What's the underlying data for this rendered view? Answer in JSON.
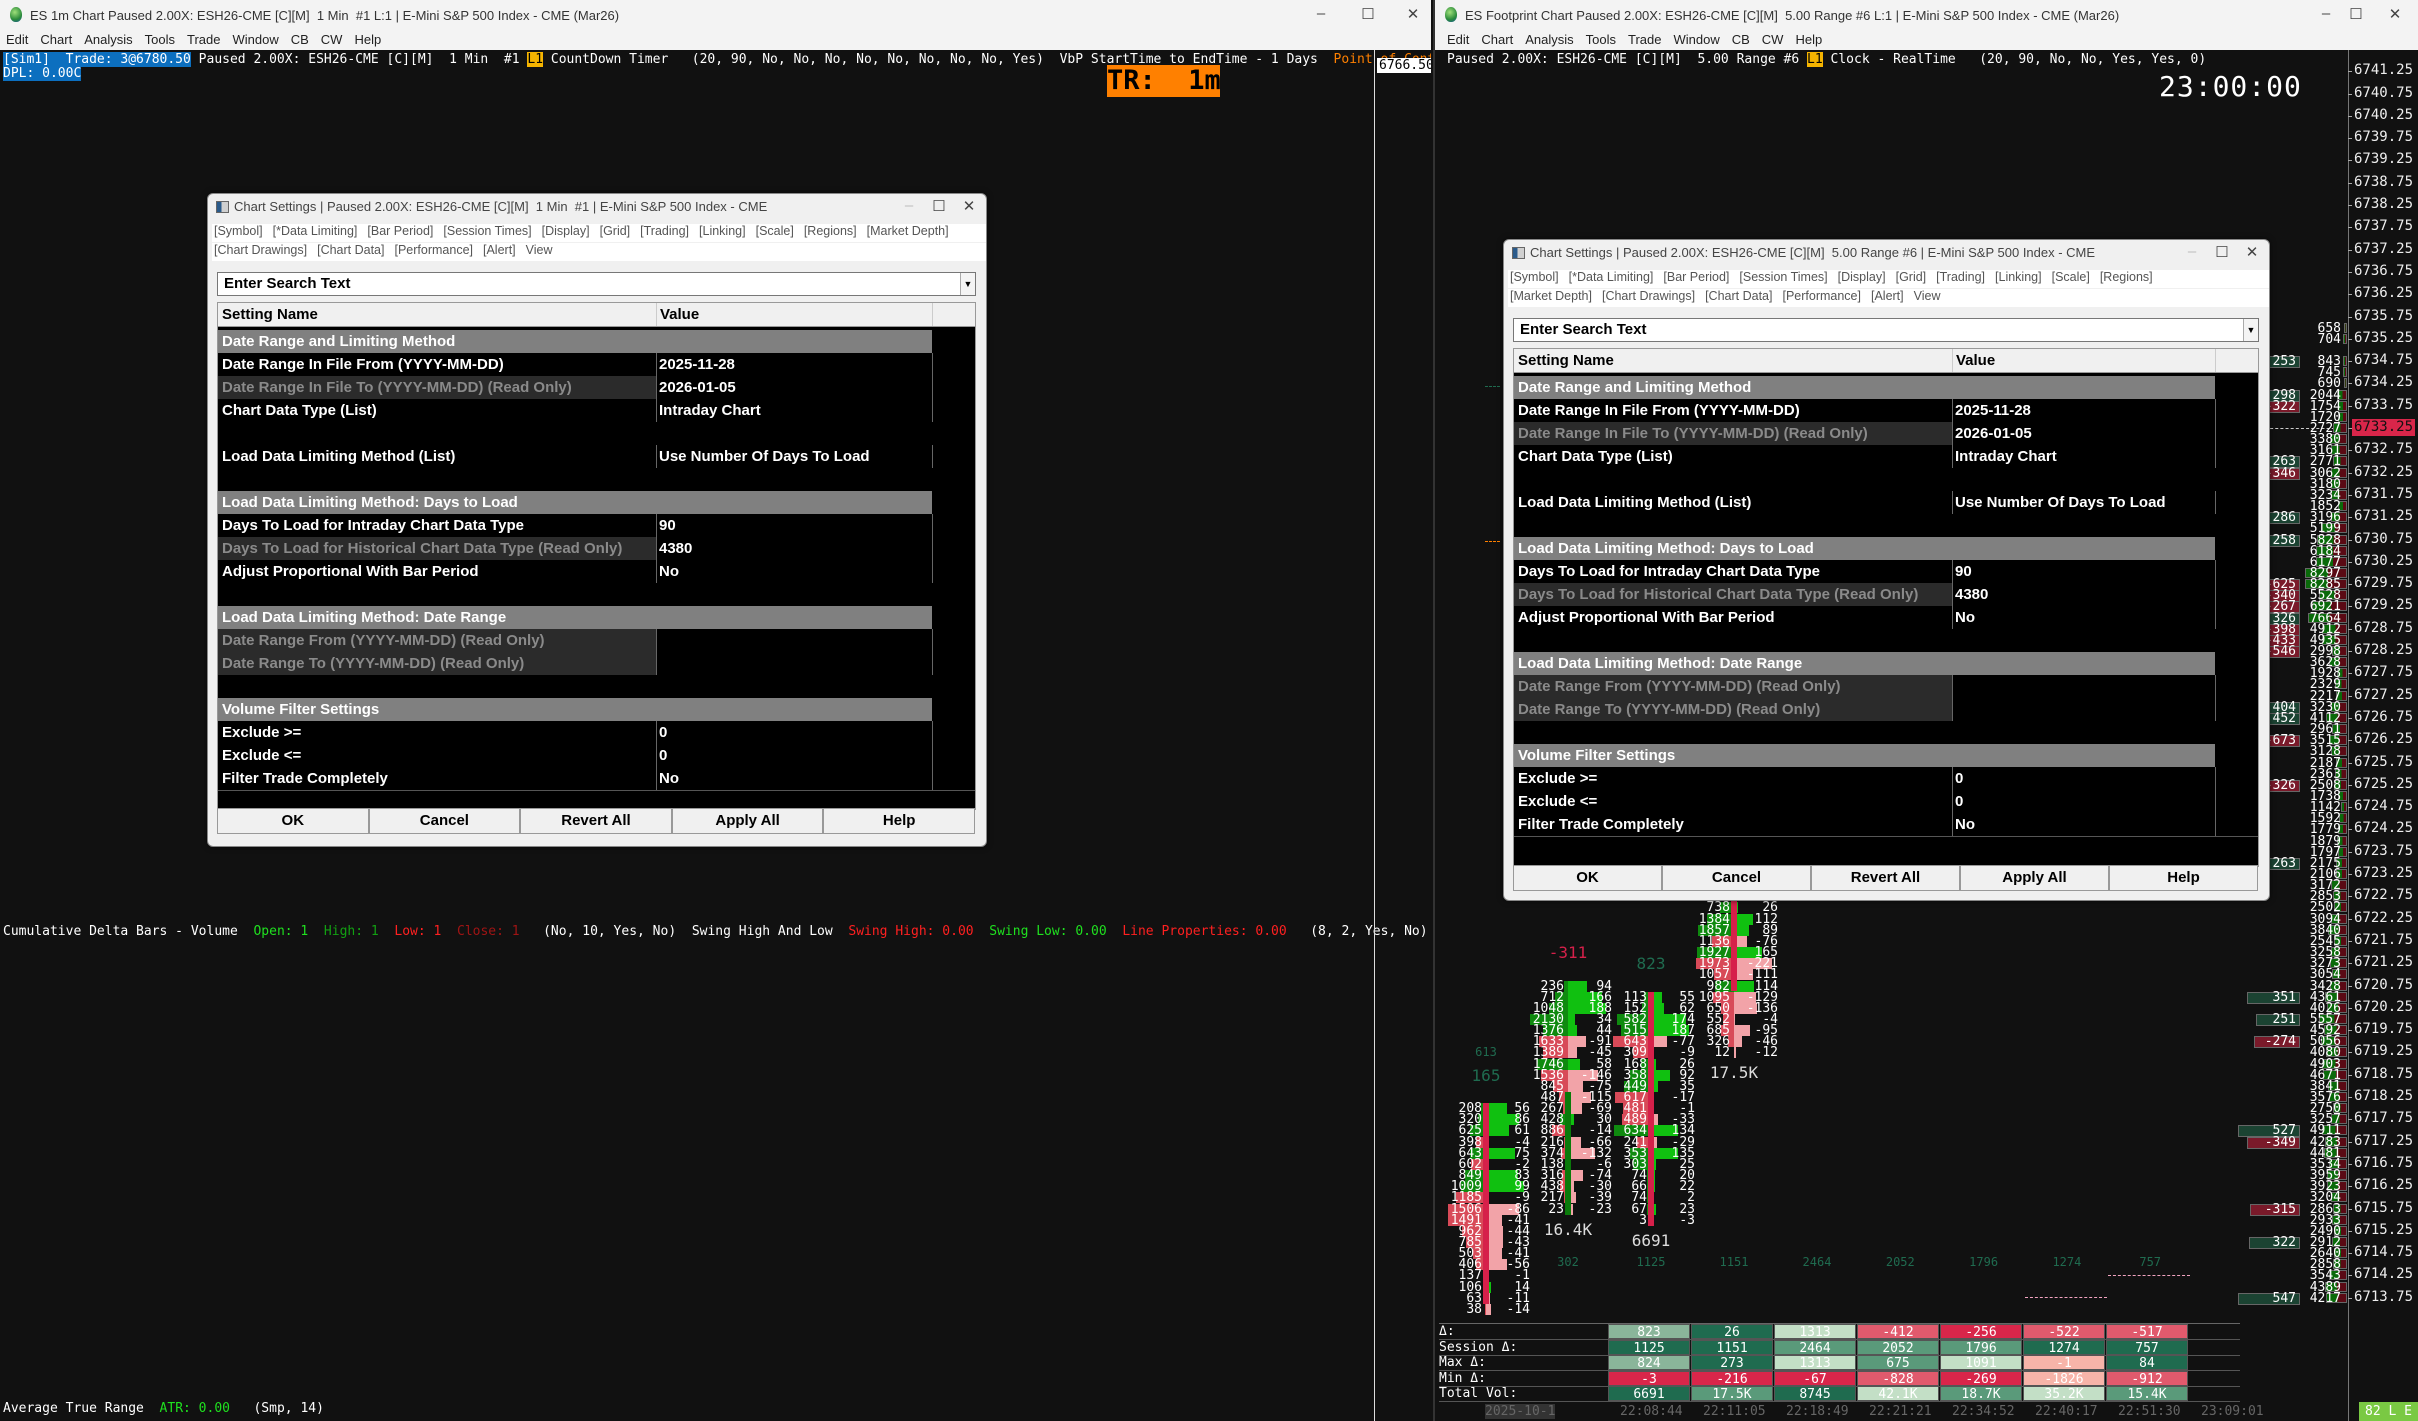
{
  "left_window": {
    "title": "ES 1m Chart Paused 2.00X: ESH26-CME [C][M]  1 Min  #1 L:1 | E-Mini S&P 500 Index - CME (Mar26)",
    "menu": [
      "Edit",
      "Chart",
      "Analysis",
      "Tools",
      "Trade",
      "Window",
      "CB",
      "CW",
      "Help"
    ],
    "info": {
      "sim": "[Sim1]  Trade: 3@6780.50",
      "paused": " Paused 2.00X: ESH26-CME [C][M]  1 Min  #1 ",
      "link": "L1",
      "study": " CountDown Timer   (20, 90, No, No, No, No, No, No, No, No, Yes)  VbP StartTime to EndTime - 1 Days  ",
      "poc": "Point of Control:",
      "dpl": "DPL: 0.00C"
    },
    "timer": "TR:  1m",
    "price_box": "6766.50",
    "cum_delta": {
      "name": "Cumulative Delta Bars - Volume",
      "open": "Open: 1",
      "high": "High: 1",
      "low": "Low: 1",
      "close": "Close: 1",
      "params": "(No, 10, Yes, No)",
      "swing_name": "Swing High And Low",
      "swing_high": "Swing High: 0.00",
      "swing_low": "Swing Low: 0.00",
      "line_props": "Line Properties: 0.00",
      "swing_params": "(8, 2, Yes, No)"
    },
    "atr": {
      "name": "Average True Range",
      "value": "ATR: 0.00",
      "params": "(Smp, 14)"
    }
  },
  "right_window": {
    "title": "ES Footprint Chart Paused 2.00X: ESH26-CME [C][M]  5.00 Range #6 L:1 | E-Mini S&P 500 Index - CME (Mar26)",
    "menu": [
      "Edit",
      "Chart",
      "Analysis",
      "Tools",
      "Trade",
      "Window",
      "CB",
      "CW",
      "Help"
    ],
    "info": {
      "paused": "Paused 2.00X: ESH26-CME [C][M]  5.00 Range #6 ",
      "link": "L1",
      "study": " Clock - RealTime   (20, 90, No, No, Yes, Yes, 0)"
    },
    "clock": "23:00:00",
    "price_axis": {
      "top": 6741.25,
      "bottom": 6713.75,
      "step": 0.5,
      "current": "6733.25"
    },
    "footprint_columns": [
      {
        "header": "165",
        "header_color": "#1f6b4f",
        "top_price": 6718.0,
        "open": 6718.0,
        "close": 6713.75,
        "session_delta": "613",
        "rows": [
          [
            208,
            56
          ],
          [
            320,
            86
          ],
          [
            625,
            61
          ],
          [
            398,
            -4
          ],
          [
            643,
            75
          ],
          [
            602,
            -2
          ],
          [
            849,
            83
          ],
          [
            1009,
            99
          ],
          [
            1185,
            -9
          ],
          [
            1506,
            -86
          ],
          [
            1491,
            -41
          ],
          [
            962,
            -44
          ],
          [
            785,
            -43
          ],
          [
            503,
            -41
          ],
          [
            406,
            -56
          ],
          [
            137,
            -1
          ],
          [
            106,
            14
          ],
          [
            63,
            -11
          ],
          [
            38,
            -14
          ]
        ]
      },
      {
        "header": "-311",
        "header_color": "#d6204a",
        "top_price": 6720.75,
        "open": 6715.75,
        "close": 6718.25,
        "footer": "16.4K",
        "session_delta": "302",
        "rows": [
          [
            236,
            94
          ],
          [
            712,
            166
          ],
          [
            1048,
            188
          ],
          [
            2130,
            34
          ],
          [
            1376,
            44
          ],
          [
            1633,
            -91
          ],
          [
            1389,
            -45
          ],
          [
            1746,
            58
          ],
          [
            1536,
            -146
          ],
          [
            845,
            -75
          ],
          [
            487,
            -115
          ],
          [
            267,
            -69
          ],
          [
            428,
            30
          ],
          [
            886,
            -14
          ],
          [
            216,
            -66
          ],
          [
            374,
            -132
          ],
          [
            138,
            -6
          ],
          [
            316,
            -74
          ],
          [
            438,
            -30
          ],
          [
            217,
            -39
          ],
          [
            23,
            -23
          ]
        ]
      },
      {
        "header": "823",
        "header_color": "#1f6b4f",
        "top_price": 6720.5,
        "open": 6720.5,
        "close": 6715.5,
        "footer": "6691",
        "session_delta": "1125",
        "rows": [
          [
            113,
            55
          ],
          [
            152,
            62
          ],
          [
            582,
            174
          ],
          [
            515,
            187
          ],
          [
            643,
            -77
          ],
          [
            309,
            -9
          ],
          [
            168,
            26
          ],
          [
            358,
            92
          ],
          [
            449,
            35
          ],
          [
            617,
            -17
          ],
          [
            481,
            -1
          ],
          [
            489,
            -33
          ],
          [
            634,
            134
          ],
          [
            241,
            -29
          ],
          [
            353,
            135
          ],
          [
            303,
            25
          ],
          [
            74,
            20
          ],
          [
            66,
            22
          ],
          [
            74,
            2
          ],
          [
            67,
            23
          ],
          [
            3,
            -3
          ]
        ]
      },
      {
        "header": "",
        "header_color": "#1f6b4f",
        "top_price": 6722.5,
        "open": 6725.0,
        "close": 6720.75,
        "footer": "17.5K",
        "session_delta": "1151",
        "rows": [
          [
            738,
            26
          ],
          [
            1384,
            112
          ],
          [
            1857,
            89
          ],
          [
            1136,
            -76
          ],
          [
            1927,
            165
          ],
          [
            1973,
            -221
          ],
          [
            1057,
            -111
          ],
          [
            982,
            114
          ],
          [
            1095,
            -129
          ],
          [
            650,
            -136
          ],
          [
            552,
            -4
          ],
          [
            685,
            -95
          ],
          [
            326,
            -46
          ],
          [
            12,
            -12
          ]
        ]
      }
    ],
    "extra_session_deltas": [
      "2464",
      "2052",
      "1796",
      "1274",
      "757"
    ],
    "volume_profile": {
      "top_price": 6735.5,
      "volumes": [
        658,
        704,
        null,
        843,
        745,
        690,
        2044,
        1754,
        1720,
        2727,
        3380,
        3161,
        2771,
        3062,
        3180,
        3234,
        1852,
        3196,
        5199,
        5828,
        6184,
        6177,
        8297,
        8285,
        5528,
        6921,
        7664,
        4912,
        4935,
        2998,
        3628,
        1928,
        2329,
        2217,
        3230,
        4112,
        2961,
        3515,
        3128,
        2187,
        2363,
        2508,
        1738,
        1142,
        1592,
        1779,
        1879,
        1797,
        2175,
        2106,
        3172,
        2853,
        2502,
        3094,
        3840,
        2545,
        3258,
        3273,
        3054,
        3428,
        4361,
        4026,
        5557,
        4592,
        5056,
        4080,
        4903,
        4671,
        3841,
        3576,
        2750,
        3257,
        4911,
        4283,
        4481,
        3534,
        3959,
        3923,
        3204,
        2863,
        2933,
        2490,
        2912,
        2640,
        2858,
        3543,
        4389,
        4217
      ]
    },
    "delta_profile": [
      [
        6734.75,
        253
      ],
      [
        6734.0,
        298
      ],
      [
        6733.75,
        -322
      ],
      [
        6732.5,
        263
      ],
      [
        6732.25,
        -346
      ],
      [
        6731.25,
        286
      ],
      [
        6730.75,
        258
      ],
      [
        6729.75,
        -625
      ],
      [
        6729.5,
        -340
      ],
      [
        6729.25,
        -267
      ],
      [
        6729.0,
        326
      ],
      [
        6728.75,
        -398
      ],
      [
        6728.5,
        -433
      ],
      [
        6728.25,
        -546
      ],
      [
        6727.0,
        404
      ],
      [
        6726.75,
        452
      ],
      [
        6726.25,
        -673
      ],
      [
        6725.25,
        -326
      ],
      [
        6723.5,
        263
      ],
      [
        6720.5,
        351
      ],
      [
        6720.0,
        251
      ],
      [
        6719.5,
        -274
      ],
      [
        6717.5,
        527
      ],
      [
        6717.25,
        -349
      ],
      [
        6715.75,
        -315
      ],
      [
        6715.0,
        322
      ],
      [
        6713.75,
        547
      ]
    ],
    "stats_table": {
      "row_labels": [
        "Δ:",
        "Session Δ:",
        "Max Δ:",
        "Min Δ:",
        "Total Vol:"
      ],
      "rows": [
        [
          "823",
          "26",
          "1313",
          "-412",
          "-256",
          "-522",
          "-517"
        ],
        [
          "1125",
          "1151",
          "2464",
          "2052",
          "1796",
          "1274",
          "757"
        ],
        [
          "824",
          "273",
          "1313",
          "675",
          "1091",
          "-1",
          "84"
        ],
        [
          "-3",
          "-216",
          "-67",
          "-828",
          "-269",
          "-1826",
          "-912"
        ],
        [
          "6691",
          "17.5K",
          "8745",
          "42.1K",
          "18.7K",
          "35.2K",
          "15.4K"
        ]
      ],
      "row_colors": [
        [
          "#8ab59a",
          "#1f6b4f",
          "#c3dfc6",
          "#e15a6d",
          "#d9264a",
          "#e15a6d",
          "#e15a6d"
        ],
        [
          "#1f6b4f",
          "#1f6b4f",
          "#5a9a7a",
          "#5a9a7a",
          "#5a9a7a",
          "#1f6b4f",
          "#1f6b4f"
        ],
        [
          "#8ab59a",
          "#1f6b4f",
          "#c3dfc6",
          "#5a9a7a",
          "#c3dfc6",
          "#f7b4a9",
          "#1f6b4f"
        ],
        [
          "#d9264a",
          "#d9264a",
          "#d9264a",
          "#e15a6d",
          "#d9264a",
          "#f7b4a9",
          "#e15a6d"
        ],
        [
          "#1f6b4f",
          "#5a9a7a",
          "#1f6b4f",
          "#c3dfc6",
          "#5a9a7a",
          "#c3dfc6",
          "#5a9a7a"
        ]
      ]
    },
    "time_axis": [
      "2025-10-1",
      "22:08:44",
      "22:11:05",
      "22:18:49",
      "22:21:21",
      "22:34:52",
      "22:40:17",
      "22:51:30",
      "23:09:01"
    ],
    "status_box": "82 L E"
  },
  "dialogs": {
    "left": {
      "title": "Chart Settings | Paused 2.00X: ESH26-CME [C][M]  1 Min  #1 | E-Mini S&P 500 Index - CME",
      "tabs": [
        [
          "[Symbol]",
          "[*Data Limiting]",
          "[Bar Period]",
          "[Session Times]",
          "[Display]",
          "[Grid]",
          "[Trading]",
          "[Linking]",
          "[Scale]",
          "[Regions]",
          "[Market Depth]"
        ],
        [
          "[Chart Drawings]",
          "[Chart Data]",
          "[Performance]",
          "[Alert]",
          "View"
        ]
      ]
    },
    "right": {
      "title": "Chart Settings | Paused 2.00X: ESH26-CME [C][M]  5.00 Range #6 | E-Mini S&P 500 Index - CME",
      "tabs": [
        [
          "[Symbol]",
          "[*Data Limiting]",
          "[Bar Period]",
          "[Session Times]",
          "[Display]",
          "[Grid]",
          "[Trading]",
          "[Linking]",
          "[Scale]",
          "[Regions]"
        ],
        [
          "[Market Depth]",
          "[Chart Drawings]",
          "[Chart Data]",
          "[Performance]",
          "[Alert]",
          "View"
        ]
      ]
    },
    "search_placeholder": "Enter Search Text",
    "columns": [
      "Setting Name",
      "Value"
    ],
    "rows": [
      {
        "type": "section",
        "name": "Date Range and Limiting Method"
      },
      {
        "type": "row",
        "name": "Date Range In File From (YYYY-MM-DD)",
        "value": "2025-11-28"
      },
      {
        "type": "readonly",
        "name": "Date Range In File To (YYYY-MM-DD) (Read Only)",
        "value": "2026-01-05"
      },
      {
        "type": "row",
        "name": "Chart Data Type (List)",
        "value": "Intraday Chart"
      },
      {
        "type": "blank"
      },
      {
        "type": "row",
        "name": "Load Data Limiting Method (List)",
        "value": "Use Number Of Days To Load"
      },
      {
        "type": "blank"
      },
      {
        "type": "section",
        "name": "Load Data Limiting Method: Days to Load"
      },
      {
        "type": "row",
        "name": "Days To Load for Intraday Chart Data Type",
        "value": "90"
      },
      {
        "type": "readonly",
        "name": "Days To Load for Historical Chart Data Type (Read Only)",
        "value": "4380"
      },
      {
        "type": "row",
        "name": "Adjust Proportional With Bar Period",
        "value": "No"
      },
      {
        "type": "blank"
      },
      {
        "type": "section",
        "name": "Load Data Limiting Method: Date Range"
      },
      {
        "type": "readonly",
        "name": "Date Range From (YYYY-MM-DD) (Read Only)",
        "value": ""
      },
      {
        "type": "readonly",
        "name": "Date Range To (YYYY-MM-DD) (Read Only)",
        "value": ""
      },
      {
        "type": "blank"
      },
      {
        "type": "section",
        "name": "Volume Filter Settings"
      },
      {
        "type": "row",
        "name": "Exclude >=",
        "value": "0"
      },
      {
        "type": "row",
        "name": "Exclude <=",
        "value": "0"
      },
      {
        "type": "row",
        "name": "Filter Trade Completely",
        "value": "No"
      }
    ],
    "buttons": [
      "OK",
      "Cancel",
      "Revert All",
      "Apply All",
      "Help"
    ]
  },
  "colors": {
    "sim_bg": "#0c6fbf",
    "link_bg": "#f5b400",
    "poc": "#ff8000",
    "timer_bg": "#ff8000",
    "price_highlight": "#d9264a",
    "status_green": "#7ac943"
  }
}
